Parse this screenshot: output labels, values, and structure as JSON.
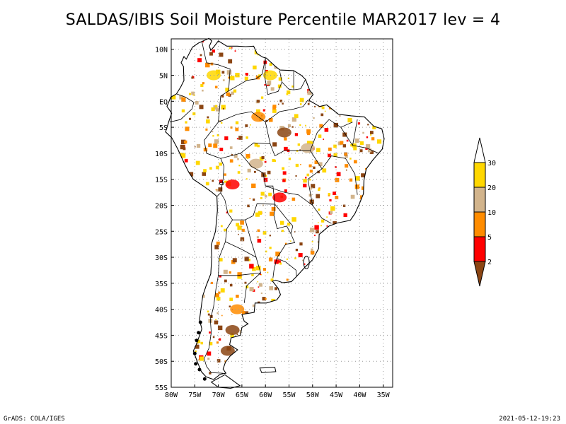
{
  "title": "SALDAS/IBIS Soil Moisture Percentile MAR2017 lev = 4",
  "footer": {
    "credit": "GrADS: COLA/IGES",
    "timestamp": "2021-05-12-19:23"
  },
  "map": {
    "lon_range": [
      -80,
      -33
    ],
    "lat_range": [
      -55,
      12
    ],
    "lat_ticks": [
      {
        "v": 10,
        "label": "10N"
      },
      {
        "v": 5,
        "label": "5N"
      },
      {
        "v": 0,
        "label": "EQ"
      },
      {
        "v": -5,
        "label": "5S"
      },
      {
        "v": -10,
        "label": "10S"
      },
      {
        "v": -15,
        "label": "15S"
      },
      {
        "v": -20,
        "label": "20S"
      },
      {
        "v": -25,
        "label": "25S"
      },
      {
        "v": -30,
        "label": "30S"
      },
      {
        "v": -35,
        "label": "35S"
      },
      {
        "v": -40,
        "label": "40S"
      },
      {
        "v": -45,
        "label": "45S"
      },
      {
        "v": -50,
        "label": "50S"
      },
      {
        "v": -55,
        "label": "55S"
      }
    ],
    "lon_ticks": [
      {
        "v": -80,
        "label": "80W"
      },
      {
        "v": -75,
        "label": "75W"
      },
      {
        "v": -70,
        "label": "70W"
      },
      {
        "v": -65,
        "label": "65W"
      },
      {
        "v": -60,
        "label": "60W"
      },
      {
        "v": -55,
        "label": "55W"
      },
      {
        "v": -50,
        "label": "50W"
      },
      {
        "v": -45,
        "label": "45W"
      },
      {
        "v": -40,
        "label": "40W"
      },
      {
        "v": -35,
        "label": "35W"
      }
    ]
  },
  "legend": {
    "labels": [
      "30",
      "20",
      "10",
      "5",
      "2"
    ],
    "colors": {
      "above_30": "#ffffff",
      "20_30": "#ffd700",
      "10_20": "#d2b48c",
      "5_10": "#ff8c00",
      "2_5": "#ff0000",
      "below_2": "#8b4513"
    }
  },
  "colors": {
    "coast": "#000000",
    "grid": "#999999",
    "background": "#ffffff"
  }
}
